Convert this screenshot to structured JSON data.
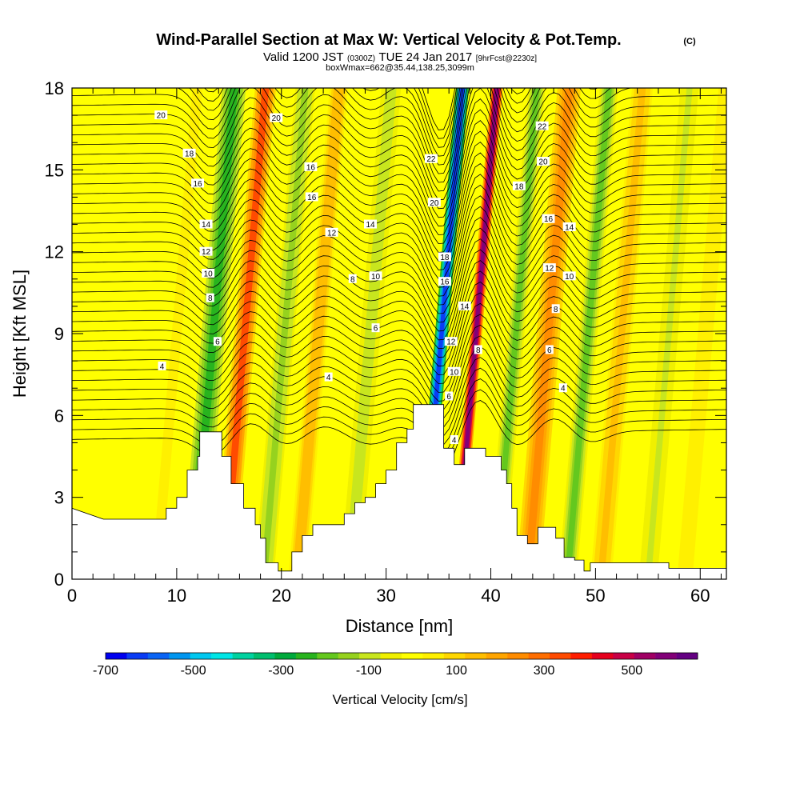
{
  "title": {
    "main": "Wind-Parallel Section at Max W: Vertical Velocity & Pot.Temp.",
    "copyright": "(C)",
    "valid_prefix": "Valid 1200 JST",
    "valid_utc": "(0300Z)",
    "valid_date": "TUE 24 Jan 2017",
    "forecast": "[9hrFcst@2230z]",
    "box_info": "boxWmax=662@35.44,138.25,3099m"
  },
  "chart_data": {
    "type": "heatmap",
    "xlabel": "Distance [nm]",
    "ylabel": "Height [Kft MSL]",
    "xlim": [
      0,
      62.5
    ],
    "ylim": [
      0,
      18
    ],
    "x_ticks": [
      "0",
      "10",
      "20",
      "30",
      "40",
      "50",
      "60"
    ],
    "y_ticks": [
      "0",
      "3",
      "6",
      "9",
      "12",
      "15",
      "18"
    ],
    "colorbar": {
      "title": "Vertical Velocity [cm/s]",
      "range": [
        -700,
        650
      ],
      "tick_labels": [
        "-700",
        "-500",
        "-300",
        "-100",
        "100",
        "300",
        "500"
      ],
      "colors": [
        "#0000f0",
        "#0a3cf5",
        "#0a64f5",
        "#0096f0",
        "#00c8f0",
        "#00e6e6",
        "#00d2a0",
        "#00be6e",
        "#00aa3c",
        "#28b41e",
        "#64c81e",
        "#96d21e",
        "#c8e61e",
        "#f0f000",
        "#ffff00",
        "#fff000",
        "#ffd700",
        "#ffbe00",
        "#ffa500",
        "#ff8c00",
        "#ff6e00",
        "#ff4b00",
        "#ff1e00",
        "#e6001e",
        "#c80046",
        "#a00064",
        "#820078",
        "#640082"
      ]
    },
    "terrain": [
      [
        0,
        2.6
      ],
      [
        3,
        2.2
      ],
      [
        9,
        2.2
      ],
      [
        9,
        2.6
      ],
      [
        10,
        2.6
      ],
      [
        10,
        3
      ],
      [
        11,
        3
      ],
      [
        11,
        4
      ],
      [
        12,
        4
      ],
      [
        12,
        4.5
      ],
      [
        12.2,
        4.5
      ],
      [
        12.2,
        5.4
      ],
      [
        14.3,
        5.4
      ],
      [
        14.3,
        4.5
      ],
      [
        15.2,
        4.5
      ],
      [
        15.2,
        3.5
      ],
      [
        16.4,
        3.5
      ],
      [
        16.4,
        2.6
      ],
      [
        17.5,
        2.6
      ],
      [
        17.5,
        2
      ],
      [
        18,
        2
      ],
      [
        18,
        1.5
      ],
      [
        18.5,
        1.5
      ],
      [
        18.5,
        0.6
      ],
      [
        19.7,
        0.6
      ],
      [
        19.7,
        0.3
      ],
      [
        21,
        0.3
      ],
      [
        21,
        1
      ],
      [
        22,
        1
      ],
      [
        22,
        1.6
      ],
      [
        23,
        1.6
      ],
      [
        23,
        2
      ],
      [
        26,
        2
      ],
      [
        26,
        2.4
      ],
      [
        27,
        2.4
      ],
      [
        27,
        2.8
      ],
      [
        28,
        2.8
      ],
      [
        28,
        3
      ],
      [
        29,
        3
      ],
      [
        29,
        3.5
      ],
      [
        30,
        3.5
      ],
      [
        30,
        4
      ],
      [
        31,
        4
      ],
      [
        31,
        5
      ],
      [
        32,
        5
      ],
      [
        32,
        5.5
      ],
      [
        32.6,
        5.5
      ],
      [
        32.6,
        6.4
      ],
      [
        35.5,
        6.4
      ],
      [
        35.5,
        4.8
      ],
      [
        36.5,
        4.8
      ],
      [
        36.5,
        4.2
      ],
      [
        37.5,
        4.2
      ],
      [
        37.5,
        4.8
      ],
      [
        39.5,
        4.8
      ],
      [
        39.5,
        4.5
      ],
      [
        41,
        4.5
      ],
      [
        41,
        4
      ],
      [
        41.5,
        4
      ],
      [
        41.5,
        3.5
      ],
      [
        42,
        3.5
      ],
      [
        42,
        2.6
      ],
      [
        42.5,
        2.6
      ],
      [
        42.5,
        1.6
      ],
      [
        43.5,
        1.6
      ],
      [
        43.5,
        1.3
      ],
      [
        44.5,
        1.3
      ],
      [
        44.5,
        1.9
      ],
      [
        46.2,
        1.9
      ],
      [
        46.2,
        1.5
      ],
      [
        47,
        1.5
      ],
      [
        47,
        0.8
      ],
      [
        48,
        0.8
      ],
      [
        48,
        0.7
      ],
      [
        48.9,
        0.7
      ],
      [
        48.9,
        0.3
      ],
      [
        49.5,
        0.3
      ],
      [
        49.5,
        0.6
      ],
      [
        57,
        0.6
      ],
      [
        57,
        0.4
      ],
      [
        62.5,
        0.4
      ]
    ],
    "velocity_bands": [
      {
        "x": 1.5,
        "w": 2.0,
        "v": 10
      },
      {
        "x": 10,
        "w": 2.3,
        "v": 25
      },
      {
        "x": 13.5,
        "w": 1.8,
        "v": -240
      },
      {
        "x": 16.5,
        "w": 1.6,
        "v": 330
      },
      {
        "x": 20.3,
        "w": 1.5,
        "v": -140
      },
      {
        "x": 23.5,
        "w": 1.4,
        "v": 160
      },
      {
        "x": 28.5,
        "w": 1.5,
        "v": -110
      },
      {
        "x": 35.3,
        "w": 1.0,
        "v": -650
      },
      {
        "x": 38.6,
        "w": 0.9,
        "v": 600
      },
      {
        "x": 42.4,
        "w": 1.3,
        "v": -180
      },
      {
        "x": 45.5,
        "w": 1.8,
        "v": 250
      },
      {
        "x": 49.3,
        "w": 1.4,
        "v": -200
      },
      {
        "x": 52.5,
        "w": 1.6,
        "v": 120
      },
      {
        "x": 57,
        "w": 1.4,
        "v": -90
      },
      {
        "x": 60.5,
        "w": 1.5,
        "v": 60
      }
    ],
    "contour_labels": [
      {
        "x": 8.5,
        "y": 17.0,
        "text": "20"
      },
      {
        "x": 19.5,
        "y": 16.9,
        "text": "20"
      },
      {
        "x": 11.2,
        "y": 15.6,
        "text": "18"
      },
      {
        "x": 12.0,
        "y": 14.5,
        "text": "16"
      },
      {
        "x": 22.8,
        "y": 15.1,
        "text": "16"
      },
      {
        "x": 22.9,
        "y": 14.0,
        "text": "16"
      },
      {
        "x": 12.8,
        "y": 13.0,
        "text": "14"
      },
      {
        "x": 28.5,
        "y": 13.0,
        "text": "14"
      },
      {
        "x": 12.8,
        "y": 12.0,
        "text": "12"
      },
      {
        "x": 24.8,
        "y": 12.7,
        "text": "12"
      },
      {
        "x": 13.0,
        "y": 11.2,
        "text": "10"
      },
      {
        "x": 13.2,
        "y": 10.3,
        "text": "8"
      },
      {
        "x": 26.8,
        "y": 11.0,
        "text": "8"
      },
      {
        "x": 29.0,
        "y": 11.1,
        "text": "10"
      },
      {
        "x": 13.9,
        "y": 8.7,
        "text": "6"
      },
      {
        "x": 29.0,
        "y": 9.2,
        "text": "6"
      },
      {
        "x": 8.6,
        "y": 7.8,
        "text": "4"
      },
      {
        "x": 24.5,
        "y": 7.4,
        "text": "4"
      },
      {
        "x": 34.3,
        "y": 15.4,
        "text": "22"
      },
      {
        "x": 34.6,
        "y": 13.8,
        "text": "20"
      },
      {
        "x": 35.6,
        "y": 11.8,
        "text": "18"
      },
      {
        "x": 35.6,
        "y": 10.9,
        "text": "16"
      },
      {
        "x": 37.5,
        "y": 10.0,
        "text": "14"
      },
      {
        "x": 36.2,
        "y": 8.7,
        "text": "12"
      },
      {
        "x": 36.5,
        "y": 7.6,
        "text": "10"
      },
      {
        "x": 38.8,
        "y": 8.4,
        "text": "8"
      },
      {
        "x": 36.0,
        "y": 6.7,
        "text": "6"
      },
      {
        "x": 36.5,
        "y": 5.1,
        "text": "4"
      },
      {
        "x": 44.9,
        "y": 16.6,
        "text": "22"
      },
      {
        "x": 45.0,
        "y": 15.3,
        "text": "20"
      },
      {
        "x": 42.7,
        "y": 14.4,
        "text": "18"
      },
      {
        "x": 45.5,
        "y": 13.2,
        "text": "16"
      },
      {
        "x": 47.5,
        "y": 12.9,
        "text": "14"
      },
      {
        "x": 45.6,
        "y": 11.4,
        "text": "12"
      },
      {
        "x": 47.5,
        "y": 11.1,
        "text": "10"
      },
      {
        "x": 46.2,
        "y": 9.9,
        "text": "8"
      },
      {
        "x": 45.6,
        "y": 8.4,
        "text": "6"
      },
      {
        "x": 46.9,
        "y": 7.0,
        "text": "4"
      }
    ]
  }
}
